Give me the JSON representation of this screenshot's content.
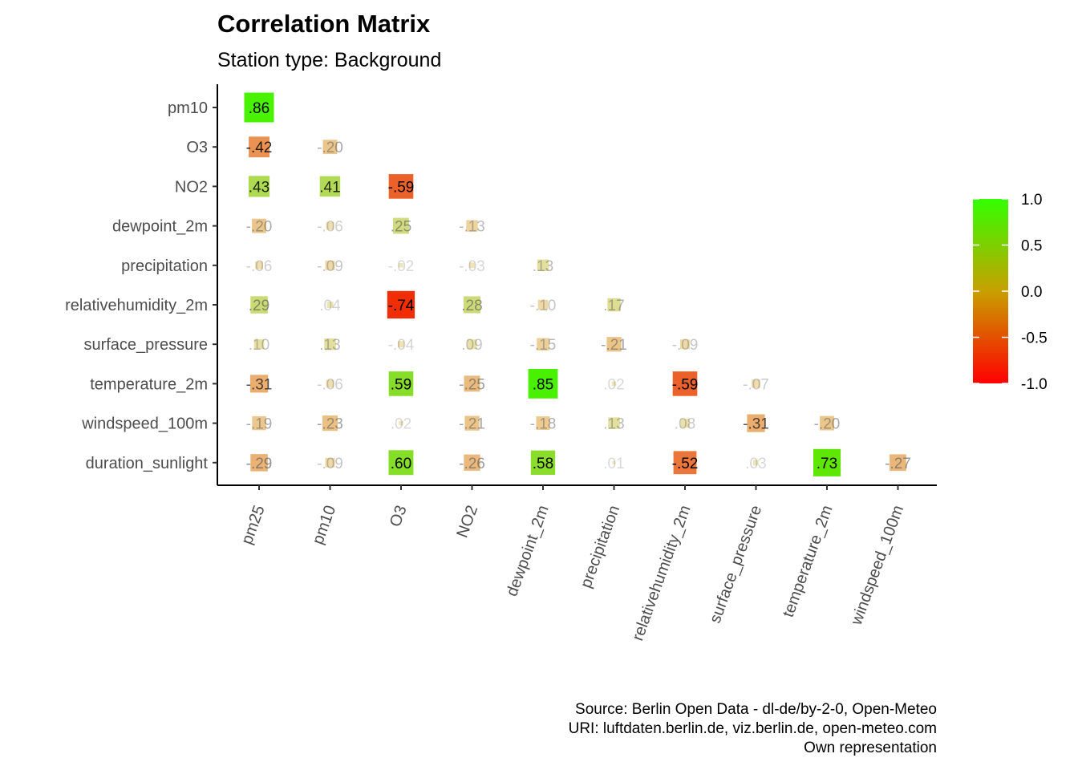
{
  "chart_data": {
    "type": "heatmap",
    "title": "Correlation Matrix",
    "subtitle": "Station type: Background",
    "x_categories": [
      "pm25",
      "pm10",
      "O3",
      "NO2",
      "dewpoint_2m",
      "precipitation",
      "relativehumidity_2m",
      "surface_pressure",
      "temperature_2m",
      "windspeed_100m"
    ],
    "y_categories": [
      "pm10",
      "O3",
      "NO2",
      "dewpoint_2m",
      "precipitation",
      "relativehumidity_2m",
      "surface_pressure",
      "temperature_2m",
      "windspeed_100m",
      "duration_sunlight"
    ],
    "values": [
      [
        0.86
      ],
      [
        -0.42,
        -0.2
      ],
      [
        0.43,
        0.41,
        -0.59
      ],
      [
        -0.2,
        -0.06,
        0.25,
        -0.13
      ],
      [
        -0.06,
        -0.09,
        -0.02,
        -0.03,
        0.13
      ],
      [
        0.29,
        0.04,
        -0.74,
        0.28,
        -0.1,
        0.17
      ],
      [
        0.1,
        0.13,
        -0.04,
        0.09,
        -0.15,
        -0.21,
        -0.09
      ],
      [
        -0.31,
        -0.06,
        0.59,
        -0.25,
        0.85,
        0.02,
        -0.59,
        -0.07
      ],
      [
        -0.19,
        -0.23,
        0.02,
        -0.21,
        -0.18,
        0.13,
        0.08,
        -0.31,
        -0.2
      ],
      [
        -0.29,
        -0.09,
        0.6,
        -0.26,
        0.58,
        0.01,
        -0.52,
        0.03,
        0.73,
        -0.27
      ]
    ],
    "labels": [
      [
        ".86"
      ],
      [
        "-.42",
        "-.20"
      ],
      [
        ".43",
        ".41",
        "-.59"
      ],
      [
        "-.20",
        "-.06",
        ".25",
        "-.13"
      ],
      [
        "-.06",
        "-.09",
        "-.02",
        "-.03",
        ".13"
      ],
      [
        ".29",
        ".04",
        "-.74",
        ".28",
        "-.10",
        ".17"
      ],
      [
        ".10",
        ".13",
        "-.04",
        ".09",
        "-.15",
        "-.21",
        "-.09"
      ],
      [
        "-.31",
        "-.06",
        ".59",
        "-.25",
        ".85",
        ".02",
        "-.59",
        "-.07"
      ],
      [
        "-.19",
        "-.23",
        ".02",
        "-.21",
        "-.18",
        ".13",
        ".08",
        "-.31",
        "-.20"
      ],
      [
        "-.29",
        "-.09",
        ".60",
        "-.26",
        ".58",
        ".01",
        "-.52",
        ".03",
        ".73",
        "-.27"
      ]
    ],
    "legend": {
      "ticks": [
        "1.0",
        "0.5",
        "0.0",
        "-0.5",
        "-1.0"
      ],
      "range": [
        -1,
        1
      ],
      "colors": {
        "low": "#ff0000",
        "mid": "#c8a000",
        "high": "#33ff00"
      }
    },
    "caption": [
      "Source: Berlin Open Data - dl-de/by-2-0, Open-Meteo",
      "URI: luftdaten.berlin.de, viz.berlin.de, open-meteo.com ",
      "Own representation"
    ]
  }
}
